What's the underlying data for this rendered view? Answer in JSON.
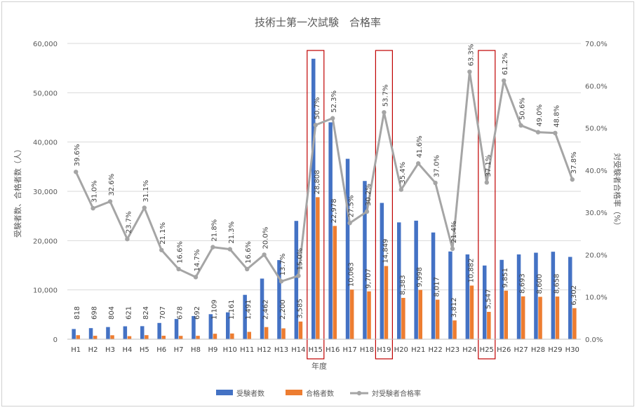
{
  "chart_data": {
    "type": "bar",
    "title": "技術士第一次試験　合格率",
    "xlabel": "年度",
    "ylabel_left": "受験者数、合格者数（人）",
    "ylabel_right": "対受験者合格率（%）",
    "ylim_left": [
      0,
      60000
    ],
    "ylim_right": [
      0,
      70
    ],
    "y_ticks_left": [
      "0",
      "10,000",
      "20,000",
      "30,000",
      "40,000",
      "50,000",
      "60,000"
    ],
    "y_ticks_right": [
      "0.0%",
      "10.0%",
      "20.0%",
      "30.0%",
      "40.0%",
      "50.0%",
      "60.0%",
      "70.0%"
    ],
    "categories": [
      "H1",
      "H2",
      "H3",
      "H4",
      "H5",
      "H6",
      "H7",
      "H8",
      "H9",
      "H10",
      "H11",
      "H12",
      "H13",
      "H14",
      "H15",
      "H16",
      "H17",
      "H18",
      "H19",
      "H20",
      "H21",
      "H22",
      "H23",
      "H24",
      "H25",
      "H26",
      "H27",
      "H28",
      "H29",
      "H30"
    ],
    "series": [
      {
        "name": "受験者数",
        "type": "bar",
        "axis": "left",
        "color": "#4472c4",
        "values": [
          2070,
          2250,
          2470,
          2620,
          2650,
          3300,
          4100,
          4700,
          5080,
          5450,
          9000,
          12300,
          16050,
          24000,
          56900,
          44000,
          36600,
          32100,
          27650,
          23700,
          24050,
          21650,
          17800,
          17200,
          14950,
          16100,
          17200,
          17550,
          17750,
          16700
        ]
      },
      {
        "name": "合格者数",
        "type": "bar",
        "axis": "left",
        "color": "#ed7d31",
        "values": [
          818,
          698,
          804,
          621,
          824,
          707,
          678,
          692,
          1109,
          1161,
          1491,
          2462,
          2200,
          3585,
          28808,
          22978,
          10063,
          9707,
          14849,
          8383,
          9998,
          8017,
          3812,
          10882,
          5547,
          9851,
          8693,
          8600,
          8658,
          6302
        ],
        "labels": [
          "818",
          "698",
          "804",
          "621",
          "824",
          "707",
          "678",
          "692",
          "1,109",
          "1,161",
          "1,491",
          "2,462",
          "2,200",
          "3,585",
          "28,808",
          "22,978",
          "10,063",
          "9,707",
          "14,849",
          "8,383",
          "9,998",
          "8,017",
          "3,812",
          "10,882",
          "5,547",
          "9,851",
          "8,693",
          "8,600",
          "8,658",
          "6,302"
        ]
      },
      {
        "name": "対受験者合格率",
        "type": "line",
        "axis": "right",
        "color": "#a5a5a5",
        "values": [
          39.6,
          31.0,
          32.6,
          23.7,
          31.1,
          21.1,
          16.6,
          14.7,
          21.8,
          21.3,
          16.6,
          20.0,
          13.7,
          15.0,
          50.7,
          52.3,
          27.5,
          30.2,
          53.7,
          35.4,
          41.6,
          37.0,
          21.4,
          63.3,
          37.1,
          61.2,
          50.6,
          49.0,
          48.8,
          37.8
        ],
        "labels": [
          "39.6%",
          "31.0%",
          "32.6%",
          "23.7%",
          "31.1%",
          "21.1%",
          "16.6%",
          "14.7%",
          "21.8%",
          "21.3%",
          "16.6%",
          "20.0%",
          "13.7%",
          "15.0%",
          "50.7%",
          "52.3%",
          "27.5%",
          "30.2%",
          "53.7%",
          "35.4%",
          "41.6%",
          "37.0%",
          "21.4%",
          "63.3%",
          "37.1%",
          "61.2%",
          "50.6%",
          "49.0%",
          "48.8%",
          "37.8%"
        ]
      }
    ],
    "highlighted_categories": [
      "H15",
      "H19",
      "H25"
    ],
    "highlight_color": "#c00000",
    "gridlines": true,
    "legend_position": "bottom"
  }
}
